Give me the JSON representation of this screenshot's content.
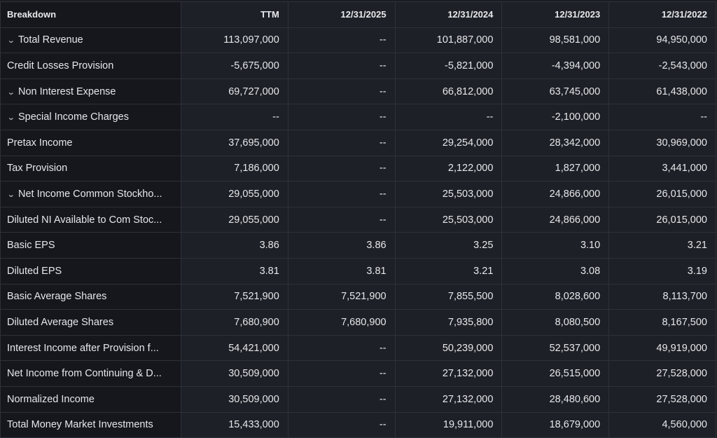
{
  "columns": [
    "Breakdown",
    "TTM",
    "12/31/2025",
    "12/31/2024",
    "12/31/2023",
    "12/31/2022"
  ],
  "rows": [
    {
      "label": "Total Revenue",
      "expandable": true,
      "values": [
        "113,097,000",
        "--",
        "101,887,000",
        "98,581,000",
        "94,950,000"
      ]
    },
    {
      "label": "Credit Losses Provision",
      "expandable": false,
      "values": [
        "-5,675,000",
        "--",
        "-5,821,000",
        "-4,394,000",
        "-2,543,000"
      ]
    },
    {
      "label": "Non Interest Expense",
      "expandable": true,
      "values": [
        "69,727,000",
        "--",
        "66,812,000",
        "63,745,000",
        "61,438,000"
      ]
    },
    {
      "label": "Special Income Charges",
      "expandable": true,
      "values": [
        "--",
        "--",
        "--",
        "-2,100,000",
        "--"
      ]
    },
    {
      "label": "Pretax Income",
      "expandable": false,
      "values": [
        "37,695,000",
        "--",
        "29,254,000",
        "28,342,000",
        "30,969,000"
      ]
    },
    {
      "label": "Tax Provision",
      "expandable": false,
      "values": [
        "7,186,000",
        "--",
        "2,122,000",
        "1,827,000",
        "3,441,000"
      ]
    },
    {
      "label": "Net Income Common Stockho...",
      "expandable": true,
      "values": [
        "29,055,000",
        "--",
        "25,503,000",
        "24,866,000",
        "26,015,000"
      ]
    },
    {
      "label": "Diluted NI Available to Com Stoc...",
      "expandable": false,
      "values": [
        "29,055,000",
        "--",
        "25,503,000",
        "24,866,000",
        "26,015,000"
      ]
    },
    {
      "label": "Basic EPS",
      "expandable": false,
      "values": [
        "3.86",
        "3.86",
        "3.25",
        "3.10",
        "3.21"
      ]
    },
    {
      "label": "Diluted EPS",
      "expandable": false,
      "values": [
        "3.81",
        "3.81",
        "3.21",
        "3.08",
        "3.19"
      ]
    },
    {
      "label": "Basic Average Shares",
      "expandable": false,
      "values": [
        "7,521,900",
        "7,521,900",
        "7,855,500",
        "8,028,600",
        "8,113,700"
      ]
    },
    {
      "label": "Diluted Average Shares",
      "expandable": false,
      "values": [
        "7,680,900",
        "7,680,900",
        "7,935,800",
        "8,080,500",
        "8,167,500"
      ]
    },
    {
      "label": "Interest Income after Provision f...",
      "expandable": false,
      "values": [
        "54,421,000",
        "--",
        "50,239,000",
        "52,537,000",
        "49,919,000"
      ]
    },
    {
      "label": "Net Income from Continuing & D...",
      "expandable": false,
      "values": [
        "30,509,000",
        "--",
        "27,132,000",
        "26,515,000",
        "27,528,000"
      ]
    },
    {
      "label": "Normalized Income",
      "expandable": false,
      "values": [
        "30,509,000",
        "--",
        "27,132,000",
        "28,480,600",
        "27,528,000"
      ]
    },
    {
      "label": "Total Money Market Investments",
      "expandable": false,
      "values": [
        "15,433,000",
        "--",
        "19,911,000",
        "18,679,000",
        "4,560,000"
      ]
    }
  ]
}
